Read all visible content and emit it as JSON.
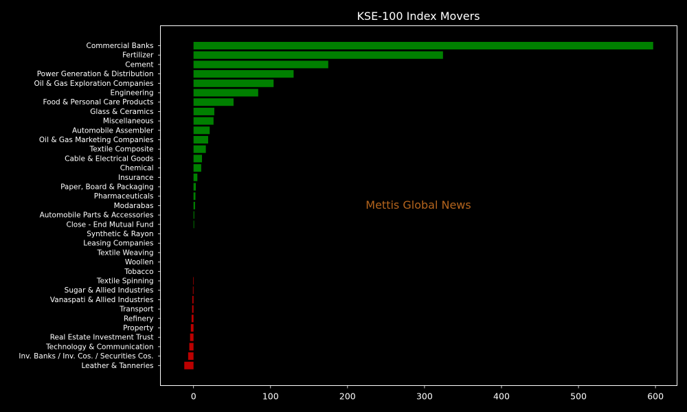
{
  "chart_data": {
    "type": "bar",
    "orientation": "horizontal",
    "title": "KSE-100 Index Movers",
    "xlabel": "",
    "ylabel": "",
    "xlim": [
      -43,
      628
    ],
    "xticks": [
      0,
      100,
      200,
      300,
      400,
      500,
      600
    ],
    "grid": false,
    "watermark": "Mettis Global News",
    "colors": {
      "background": "#000000",
      "axes": "#ffffff",
      "text": "#ffffff",
      "positive": "#008000",
      "negative": "#bb0000",
      "watermark": "#b5651d"
    },
    "categories": [
      "Commercial Banks",
      "Fertilizer",
      "Cement",
      "Power Generation & Distribution",
      "Oil & Gas Exploration Companies",
      "Engineering",
      "Food & Personal Care Products",
      "Glass & Ceramics",
      "Miscellaneous",
      "Automobile Assembler",
      "Oil & Gas Marketing Companies",
      "Textile Composite",
      "Cable & Electrical Goods",
      "Chemical",
      "Insurance",
      "Paper, Board & Packaging",
      "Pharmaceuticals",
      "Modarabas",
      "Automobile Parts & Accessories",
      "Close - End Mutual Fund",
      "Synthetic & Rayon",
      "Leasing Companies",
      "Textile Weaving",
      "Woollen",
      "Tobacco",
      "Textile Spinning",
      "Sugar & Allied Industries",
      "Vanaspati & Allied Industries",
      "Transport",
      "Refinery",
      "Property",
      "Real Estate Investment Trust",
      "Technology & Communication",
      "Inv. Banks / Inv. Cos. / Securities Cos.",
      "Leather & Tanneries"
    ],
    "values": [
      597,
      324,
      175,
      130,
      104,
      84,
      52,
      27,
      26,
      21,
      19,
      16,
      11,
      10,
      5,
      3,
      2.5,
      2,
      1,
      0.8,
      0,
      0,
      0,
      0,
      0,
      -0.6,
      -0.8,
      -1.5,
      -1.8,
      -2.5,
      -3.5,
      -4.5,
      -5.5,
      -7,
      -12
    ]
  }
}
